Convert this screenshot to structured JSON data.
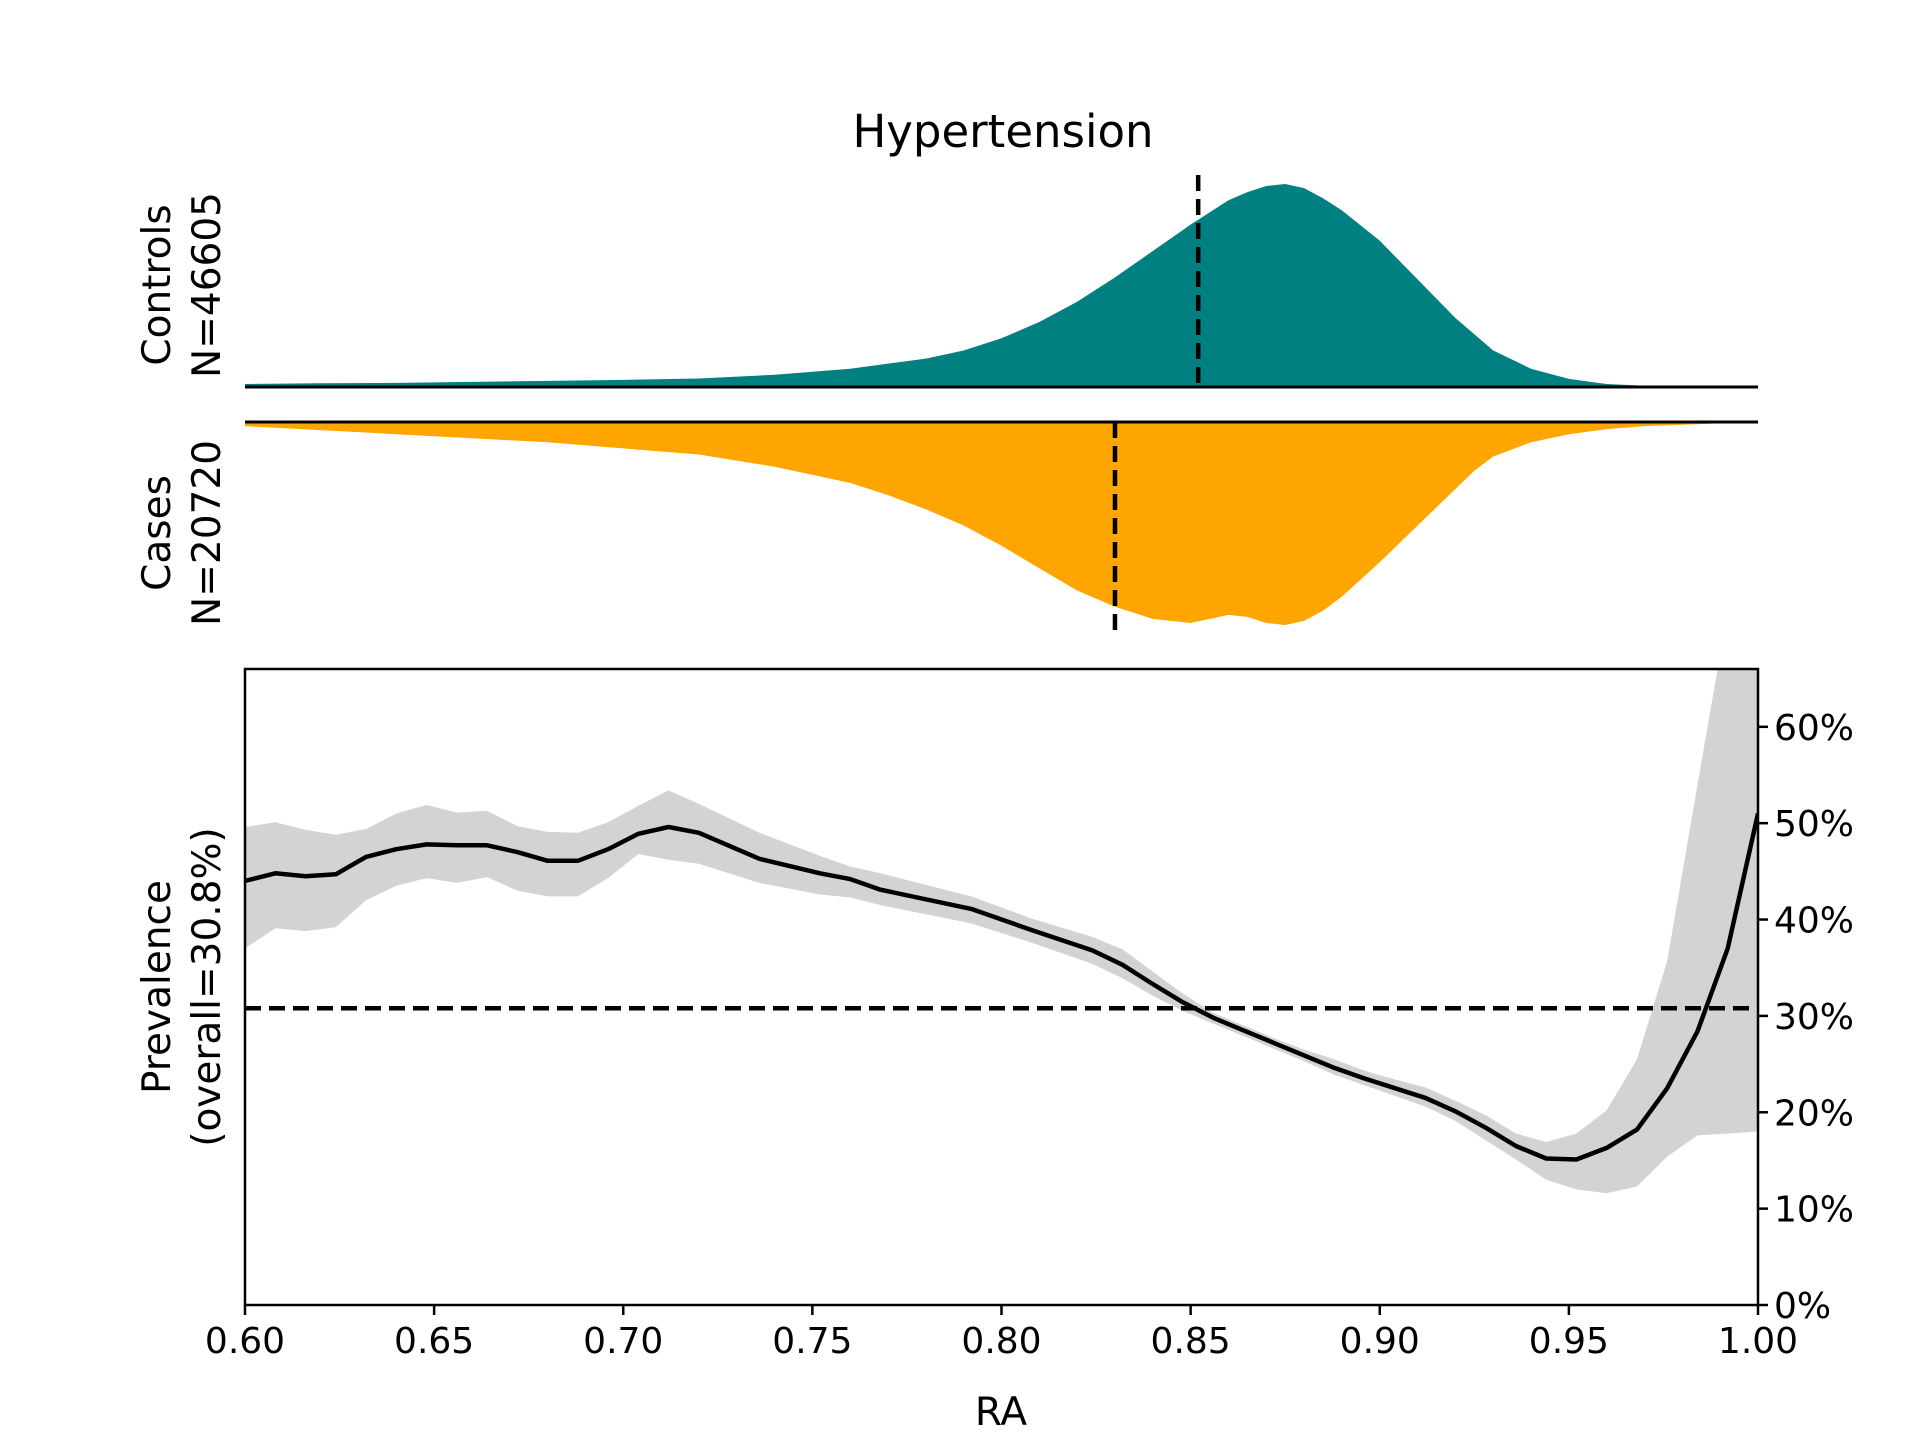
{
  "chart_data": [
    {
      "type": "area",
      "panel": "controls",
      "title": "Hypertension",
      "ylabel_line1": "Controls",
      "ylabel_line2": "N=46605",
      "color": "#008080",
      "xlim": [
        0.6,
        1.0
      ],
      "mean_line_x": 0.852,
      "x": [
        0.6,
        0.62,
        0.64,
        0.66,
        0.68,
        0.7,
        0.72,
        0.74,
        0.76,
        0.78,
        0.79,
        0.8,
        0.81,
        0.82,
        0.83,
        0.84,
        0.85,
        0.86,
        0.865,
        0.87,
        0.875,
        0.88,
        0.885,
        0.89,
        0.9,
        0.91,
        0.92,
        0.93,
        0.94,
        0.95,
        0.96,
        0.97,
        0.98,
        1.0
      ],
      "values": [
        0.015,
        0.018,
        0.02,
        0.025,
        0.03,
        0.035,
        0.042,
        0.06,
        0.09,
        0.14,
        0.18,
        0.24,
        0.32,
        0.42,
        0.54,
        0.67,
        0.8,
        0.92,
        0.96,
        0.99,
        1.0,
        0.98,
        0.93,
        0.87,
        0.72,
        0.53,
        0.34,
        0.18,
        0.09,
        0.04,
        0.015,
        0.006,
        0.002,
        0.0
      ]
    },
    {
      "type": "area",
      "panel": "cases",
      "ylabel_line1": "Cases",
      "ylabel_line2": "N=20720",
      "color": "#FFA500",
      "xlim": [
        0.6,
        1.0
      ],
      "mean_line_x": 0.83,
      "x": [
        0.6,
        0.62,
        0.64,
        0.66,
        0.68,
        0.7,
        0.72,
        0.74,
        0.76,
        0.77,
        0.78,
        0.79,
        0.8,
        0.81,
        0.82,
        0.83,
        0.84,
        0.85,
        0.86,
        0.865,
        0.87,
        0.875,
        0.88,
        0.885,
        0.89,
        0.9,
        0.91,
        0.92,
        0.925,
        0.93,
        0.94,
        0.95,
        0.96,
        0.97,
        1.0
      ],
      "values": [
        0.02,
        0.04,
        0.06,
        0.08,
        0.1,
        0.13,
        0.16,
        0.22,
        0.3,
        0.36,
        0.43,
        0.51,
        0.61,
        0.72,
        0.83,
        0.91,
        0.97,
        0.99,
        0.95,
        0.96,
        0.99,
        1.0,
        0.98,
        0.93,
        0.86,
        0.69,
        0.51,
        0.33,
        0.24,
        0.17,
        0.1,
        0.06,
        0.035,
        0.02,
        0.0
      ]
    },
    {
      "type": "line",
      "panel": "prevalence",
      "xlabel": "RA",
      "ylabel_line1": "Prevalence",
      "ylabel_line2": "(overall=30.8%)",
      "overall": 30.8,
      "xlim": [
        0.6,
        1.0
      ],
      "ylim": [
        0,
        66
      ],
      "x_ticks": [
        "0.60",
        "0.65",
        "0.70",
        "0.75",
        "0.80",
        "0.85",
        "0.90",
        "0.95",
        "1.00"
      ],
      "y_ticks": [
        "0%",
        "10%",
        "20%",
        "30%",
        "40%",
        "50%",
        "60%"
      ],
      "x": [
        0.6,
        0.608,
        0.616,
        0.624,
        0.632,
        0.64,
        0.648,
        0.656,
        0.664,
        0.672,
        0.68,
        0.688,
        0.696,
        0.704,
        0.712,
        0.72,
        0.736,
        0.752,
        0.76,
        0.768,
        0.792,
        0.808,
        0.824,
        0.832,
        0.84,
        0.848,
        0.856,
        0.864,
        0.872,
        0.88,
        0.888,
        0.896,
        0.904,
        0.912,
        0.92,
        0.928,
        0.936,
        0.944,
        0.952,
        0.96,
        0.968,
        0.976,
        0.984,
        0.992,
        1.0
      ],
      "y": [
        44.0,
        44.8,
        44.5,
        44.7,
        46.5,
        47.3,
        47.8,
        47.7,
        47.7,
        47.0,
        46.1,
        46.1,
        47.3,
        48.9,
        49.6,
        49.0,
        46.3,
        44.8,
        44.2,
        43.1,
        41.1,
        38.9,
        36.8,
        35.3,
        33.3,
        31.4,
        29.8,
        28.5,
        27.2,
        25.9,
        24.6,
        23.5,
        22.5,
        21.5,
        20.1,
        18.4,
        16.5,
        15.2,
        15.1,
        16.3,
        18.2,
        22.5,
        28.4,
        37.0,
        51.0
      ],
      "ci_upper": [
        49.6,
        50.1,
        49.3,
        48.8,
        49.4,
        51.0,
        51.9,
        51.1,
        51.3,
        49.7,
        49.1,
        49.0,
        50.1,
        51.8,
        53.4,
        52.0,
        49.0,
        46.6,
        45.5,
        44.8,
        42.4,
        40.1,
        38.2,
        36.9,
        34.6,
        32.3,
        30.3,
        29.0,
        27.7,
        26.5,
        25.5,
        24.3,
        23.4,
        22.6,
        21.2,
        19.7,
        17.8,
        16.9,
        17.8,
        20.2,
        25.5,
        35.7,
        54.0,
        72.0,
        72.0
      ],
      "ci_lower": [
        37.0,
        39.1,
        38.8,
        39.2,
        42.0,
        43.5,
        44.3,
        43.8,
        44.4,
        43.0,
        42.4,
        42.4,
        44.3,
        46.8,
        46.2,
        45.8,
        43.8,
        42.6,
        42.3,
        41.5,
        39.6,
        37.6,
        35.4,
        33.9,
        32.1,
        30.5,
        29.2,
        27.9,
        26.6,
        25.3,
        23.9,
        22.8,
        21.7,
        20.6,
        19.1,
        17.1,
        15.1,
        13.0,
        12.0,
        11.6,
        12.3,
        15.4,
        17.6,
        17.8,
        18.0
      ]
    }
  ]
}
